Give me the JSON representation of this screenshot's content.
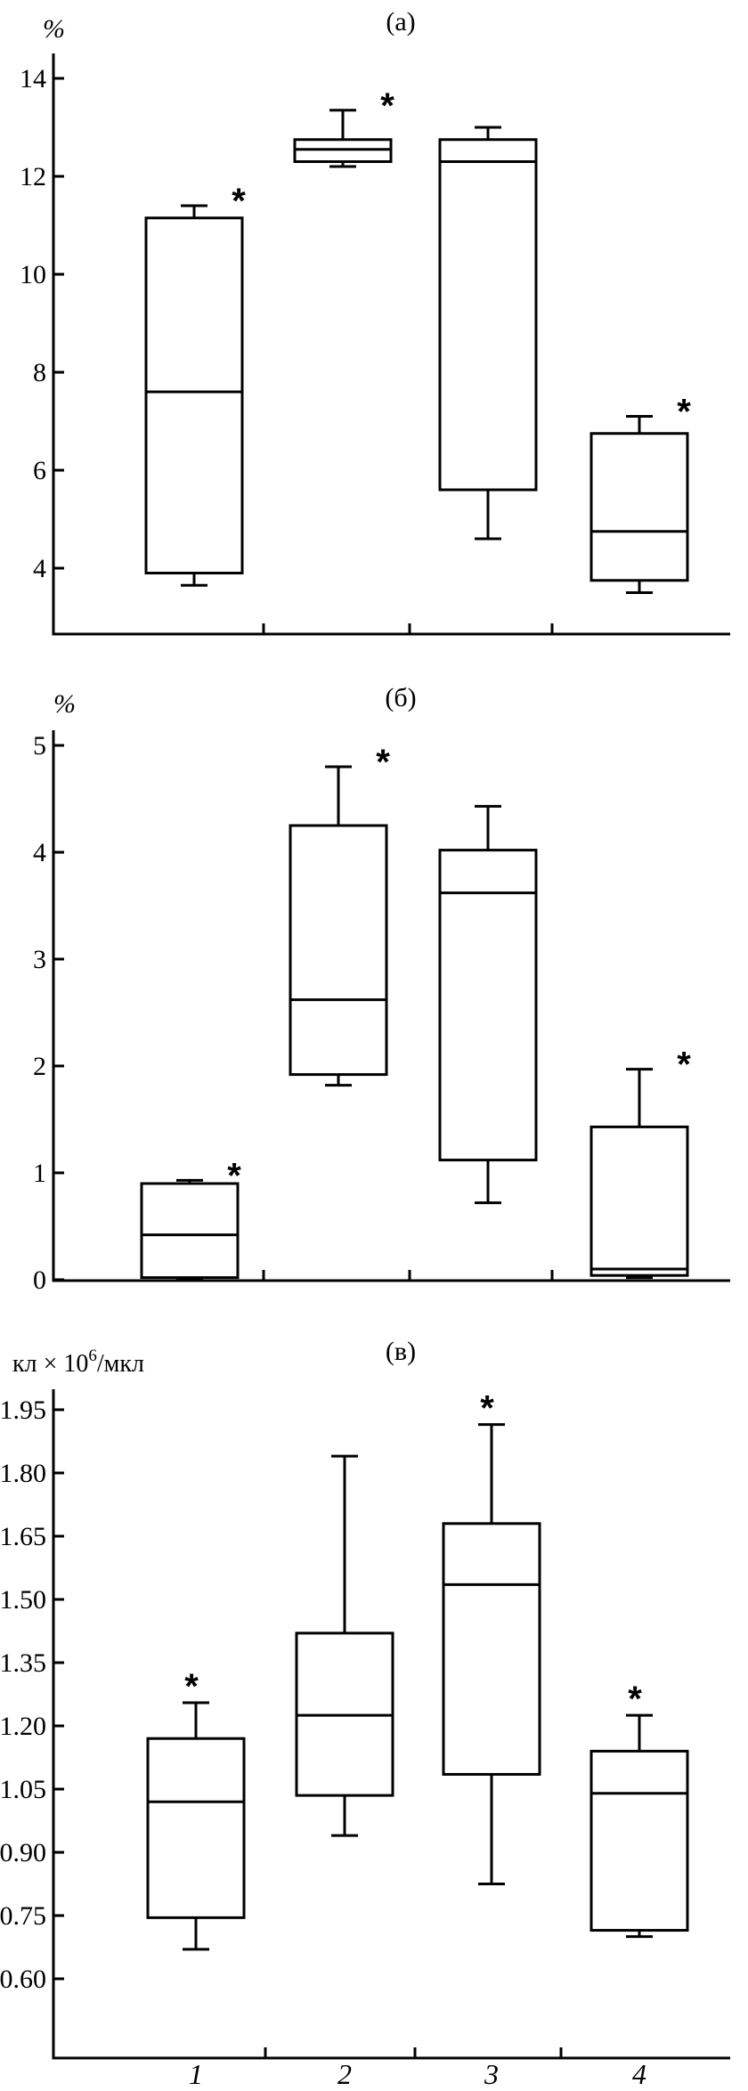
{
  "categories": [
    "1",
    "2",
    "3",
    "4"
  ],
  "chart_data": [
    {
      "type": "box",
      "title": "(а)",
      "ylabel": "%",
      "ylim": [
        2.5,
        14
      ],
      "yticks": [
        4,
        6,
        8,
        10,
        12,
        14
      ],
      "tick_labels": [
        "4",
        "6",
        "8",
        "10",
        "12",
        "14"
      ],
      "categories": [
        "1",
        "2",
        "3",
        "4"
      ],
      "boxes": [
        {
          "min": 3.65,
          "q1": 3.9,
          "median": 7.6,
          "q3": 11.15,
          "max": 11.4,
          "significant": true
        },
        {
          "min": 12.2,
          "q1": 12.3,
          "median": 12.55,
          "q3": 12.75,
          "max": 13.35,
          "significant": true
        },
        {
          "min": 4.6,
          "q1": 5.6,
          "median": 12.3,
          "q3": 12.75,
          "max": 13.0,
          "significant": false
        },
        {
          "min": 3.5,
          "q1": 3.75,
          "median": 4.75,
          "q3": 6.75,
          "max": 7.1,
          "significant": true
        }
      ],
      "annotation": "*"
    },
    {
      "type": "box",
      "title": "(б)",
      "ylabel": "%",
      "ylim": [
        0,
        5
      ],
      "yticks": [
        0,
        1,
        2,
        3,
        4,
        5
      ],
      "tick_labels": [
        "0",
        "1",
        "2",
        "3",
        "4",
        "5"
      ],
      "categories": [
        "1",
        "2",
        "3",
        "4"
      ],
      "boxes": [
        {
          "min": 0.0,
          "q1": 0.02,
          "median": 0.42,
          "q3": 0.9,
          "max": 0.93,
          "significant": true
        },
        {
          "min": 1.82,
          "q1": 1.92,
          "median": 2.62,
          "q3": 4.25,
          "max": 4.8,
          "significant": true
        },
        {
          "min": 0.72,
          "q1": 1.12,
          "median": 3.62,
          "q3": 4.02,
          "max": 4.43,
          "significant": false
        },
        {
          "min": 0.02,
          "q1": 0.04,
          "median": 0.1,
          "q3": 1.43,
          "max": 1.97,
          "significant": true
        }
      ],
      "annotation": "*"
    },
    {
      "type": "box",
      "title": "(в)",
      "ylabel_main": "кл × 10",
      "ylabel_exp": "6",
      "ylabel_tail": "/мкл",
      "ylim": [
        0.57,
        1.95
      ],
      "yticks": [
        0.6,
        0.75,
        0.9,
        1.05,
        1.2,
        1.35,
        1.5,
        1.65,
        1.8,
        1.95
      ],
      "tick_labels": [
        "0.60",
        "0.75",
        "0.90",
        "1.05",
        "1.20",
        "1.35",
        "1.50",
        "1.65",
        "1.80",
        "1.95"
      ],
      "categories": [
        "1",
        "2",
        "3",
        "4"
      ],
      "boxes": [
        {
          "min": 0.67,
          "q1": 0.745,
          "median": 1.02,
          "q3": 1.17,
          "max": 1.255,
          "significant": true
        },
        {
          "min": 0.94,
          "q1": 1.035,
          "median": 1.225,
          "q3": 1.42,
          "max": 1.84,
          "significant": false
        },
        {
          "min": 0.825,
          "q1": 1.085,
          "median": 1.535,
          "q3": 1.68,
          "max": 1.915,
          "significant": true
        },
        {
          "min": 0.7,
          "q1": 0.715,
          "median": 1.04,
          "q3": 1.14,
          "max": 1.225,
          "significant": true
        }
      ],
      "annotation": "*"
    }
  ]
}
